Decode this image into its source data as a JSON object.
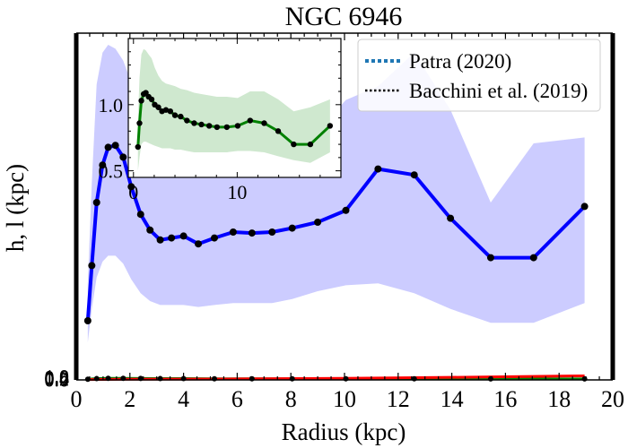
{
  "chart_data": {
    "type": "line",
    "title": "NGC 6946",
    "xlabel": "Radius (kpc)",
    "ylabel": "h, l (kpc)",
    "xlim": [
      0,
      20
    ],
    "ylim": [
      0,
      1.8
    ],
    "x_ticks": [
      "0",
      "2",
      "4",
      "6",
      "8",
      "10",
      "12",
      "14",
      "16",
      "18",
      "20"
    ],
    "y_ticks": [
      "0.0",
      "0.2",
      "0.4",
      "0.6",
      "0.8",
      "1.0"
    ],
    "legend": {
      "placement": "top-right",
      "entries": [
        {
          "label": "Patra (2020)",
          "style": "dotted",
          "color": "#1f77b4"
        },
        {
          "label": "Bacchini et al. (2019)",
          "style": "dotted",
          "color": "#000000"
        }
      ]
    },
    "series": [
      {
        "color": "#0000ff",
        "band_color": "#ccccff",
        "x": [
          0.43,
          0.58,
          0.76,
          0.98,
          1.19,
          1.46,
          1.75,
          2.05,
          2.4,
          2.75,
          3.13,
          3.55,
          4.0,
          4.55,
          5.15,
          5.85,
          6.55,
          7.3,
          8.05,
          9.0,
          10.05,
          11.25,
          12.6,
          13.95,
          15.45,
          17.05,
          18.95
        ],
        "y": [
          0.3,
          0.58,
          0.9,
          1.09,
          1.18,
          1.19,
          1.13,
          0.98,
          0.84,
          0.76,
          0.71,
          0.72,
          0.73,
          0.69,
          0.72,
          0.75,
          0.745,
          0.75,
          0.77,
          0.8,
          0.86,
          1.07,
          1.04,
          0.82,
          0.62,
          0.62,
          0.88
        ],
        "y_low": [
          0.19,
          0.36,
          0.52,
          0.6,
          0.63,
          0.63,
          0.59,
          0.51,
          0.44,
          0.4,
          0.38,
          0.38,
          0.38,
          0.37,
          0.38,
          0.39,
          0.39,
          0.39,
          0.41,
          0.45,
          0.48,
          0.49,
          0.44,
          0.36,
          0.29,
          0.29,
          0.39
        ],
        "y_high": [
          0.49,
          1.0,
          1.5,
          1.66,
          1.7,
          1.68,
          1.62,
          1.51,
          1.38,
          1.27,
          1.19,
          1.17,
          1.17,
          1.13,
          1.13,
          1.16,
          1.18,
          1.19,
          1.22,
          1.26,
          1.42,
          1.49,
          1.66,
          1.37,
          0.9,
          1.2,
          1.23
        ]
      },
      {
        "color": "#008000",
        "x": [
          0.43,
          0.76,
          1.19,
          1.75,
          2.4,
          3.13,
          4.0,
          5.15,
          6.55,
          8.05,
          10.05,
          12.6,
          15.45,
          18.95
        ],
        "y": [
          0.004,
          0.008,
          0.01,
          0.01,
          0.009,
          0.008,
          0.008,
          0.007,
          0.007,
          0.007,
          0.007,
          0.007,
          0.006,
          0.006
        ]
      },
      {
        "color": "#ff0000",
        "x": [
          0.43,
          2.0,
          6.0,
          10.0,
          14.0,
          18.95
        ],
        "y": [
          0.002,
          0.004,
          0.006,
          0.01,
          0.016,
          0.025
        ]
      }
    ],
    "inset": {
      "xlim": [
        -0.5,
        20
      ],
      "ylim": [
        0.45,
        1.5
      ],
      "x_ticks": [
        "0",
        "10"
      ],
      "y_ticks": [
        "0.5",
        "1.0"
      ],
      "series": {
        "color": "#008000",
        "band_color": "#cfe8cf",
        "x": [
          0.43,
          0.58,
          0.76,
          0.98,
          1.19,
          1.46,
          1.75,
          2.05,
          2.4,
          2.75,
          3.13,
          3.55,
          4.0,
          4.55,
          5.15,
          5.85,
          6.55,
          7.3,
          8.05,
          9.0,
          10.05,
          11.25,
          12.6,
          13.95,
          15.45,
          17.05,
          18.95
        ],
        "y": [
          0.68,
          0.86,
          1.03,
          1.08,
          1.09,
          1.06,
          1.04,
          1.0,
          0.98,
          0.95,
          0.96,
          0.95,
          0.92,
          0.91,
          0.88,
          0.86,
          0.85,
          0.84,
          0.83,
          0.83,
          0.84,
          0.88,
          0.86,
          0.8,
          0.7,
          0.7,
          0.84
        ],
        "y_low": [
          0.5,
          0.6,
          0.7,
          0.72,
          0.72,
          0.71,
          0.7,
          0.69,
          0.68,
          0.67,
          0.67,
          0.67,
          0.66,
          0.66,
          0.65,
          0.64,
          0.64,
          0.64,
          0.64,
          0.64,
          0.65,
          0.65,
          0.64,
          0.61,
          0.58,
          0.56,
          0.64
        ],
        "y_high": [
          0.88,
          1.2,
          1.38,
          1.42,
          1.41,
          1.38,
          1.35,
          1.28,
          1.22,
          1.18,
          1.16,
          1.15,
          1.14,
          1.12,
          1.11,
          1.09,
          1.08,
          1.07,
          1.06,
          1.06,
          1.05,
          1.1,
          1.1,
          1.04,
          0.95,
          0.98,
          1.04
        ]
      }
    }
  }
}
